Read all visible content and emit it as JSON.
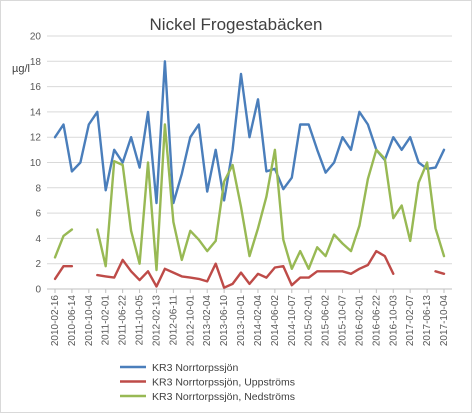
{
  "chart_data": {
    "type": "line",
    "title": "Nickel Frogestabäcken",
    "ylabel": "µg/l",
    "ylim": [
      0,
      20
    ],
    "yticks": [
      0,
      2,
      4,
      6,
      8,
      10,
      12,
      14,
      16,
      18,
      20
    ],
    "grid": "horizontal",
    "legend_position": "bottom",
    "x_tick_labels": [
      "2010-02-16",
      "2010-06-14",
      "2010-10-04",
      "2011-02-01",
      "2011-06-22",
      "2011-10-05",
      "2012-02-13",
      "2012-06-11",
      "2012-10-01",
      "2013-02-04",
      "2013-06-10",
      "2013-10-01",
      "2014-02-04",
      "2014-06-02",
      "2014-10-07",
      "2015-02-01",
      "2015-06-02",
      "2015-10-07",
      "2016-02-01",
      "2016-06-22",
      "2016-10-03",
      "2017-02-07",
      "2017-06-13",
      "2017-10-04"
    ],
    "series": [
      {
        "name": "KR3 Norrtorpssjön",
        "color": "#4a7ebb",
        "values": [
          12,
          13,
          9.3,
          10,
          13,
          14,
          7.8,
          11,
          10,
          12,
          9.6,
          14,
          6.8,
          18,
          6.8,
          9.1,
          12,
          13,
          7.7,
          11,
          7,
          11,
          17,
          12,
          15,
          9.3,
          9.5,
          7.9,
          8.8,
          13,
          13,
          11,
          9.2,
          10,
          12,
          11,
          14,
          13,
          11,
          10.2,
          12,
          11,
          12,
          10,
          9.5,
          9.6,
          11
        ]
      },
      {
        "name": "KR3 Norrtorpssjön, Uppströms",
        "color": "#be4b48",
        "values": [
          0.8,
          1.8,
          1.8,
          null,
          null,
          1.1,
          1,
          0.9,
          2.3,
          1.4,
          0.7,
          1.4,
          0.2,
          1.6,
          1.3,
          1,
          0.9,
          0.8,
          0.6,
          2,
          0.1,
          0.4,
          1.3,
          0.4,
          1.2,
          0.9,
          1.7,
          1.8,
          0.3,
          0.9,
          0.9,
          1.4,
          1.4,
          1.4,
          1.4,
          1.2,
          1.6,
          1.9,
          3,
          2.6,
          1.2,
          null,
          null,
          null,
          null,
          1.4,
          1.2
        ]
      },
      {
        "name": "KR3 Norrtorpssjön, Nedströms",
        "color": "#98b954",
        "values": [
          2.5,
          4.2,
          4.7,
          null,
          null,
          4.7,
          1.8,
          10.1,
          9.8,
          4.6,
          2,
          10,
          1.5,
          13,
          5.3,
          2.3,
          4.6,
          3.9,
          3,
          3.8,
          8.5,
          9.8,
          6.5,
          2.6,
          4.8,
          7.3,
          11,
          3.9,
          1.6,
          3,
          1.6,
          3.3,
          2.6,
          4.3,
          3.6,
          3,
          5,
          8.7,
          11,
          10.3,
          5.6,
          6.6,
          3.8,
          8.4,
          10,
          4.8,
          2.6
        ]
      }
    ]
  }
}
